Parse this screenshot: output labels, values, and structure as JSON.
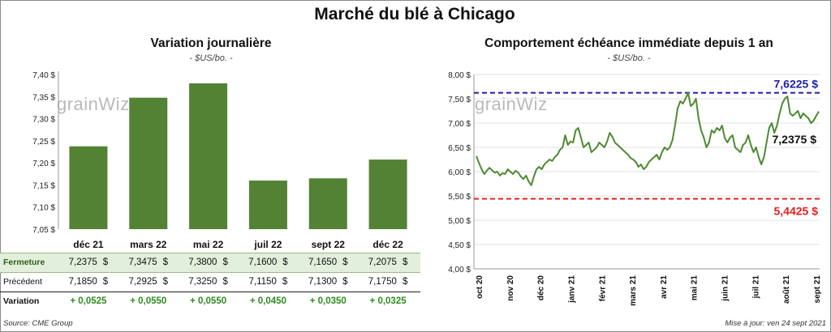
{
  "header": {
    "title": "Marché du blé à Chicago"
  },
  "left_chart": {
    "title": "Variation journalière",
    "subtitle": "- $US/bo. -",
    "logo": "grainWiz"
  },
  "right_chart": {
    "title": "Comportement  échéance immédiate depuis 1 an",
    "subtitle": "- $US/bo. -",
    "logo": "grainWiz",
    "annotations": {
      "high": "7,6225 $",
      "low": "5,4425 $",
      "last": "7,2375 $"
    }
  },
  "table": {
    "rows": [
      {
        "label": "Fermeture",
        "values": [
          "7,2375",
          "7,3475",
          "7,3800",
          "7,1600",
          "7,1650",
          "7,2075"
        ],
        "unit": "$"
      },
      {
        "label": "Précédent",
        "values": [
          "7,1850",
          "7,2925",
          "7,3250",
          "7,1150",
          "7,1300",
          "7,1750"
        ],
        "unit": "$"
      },
      {
        "label": "Variation",
        "values": [
          "+ 0,0525",
          "+ 0,0550",
          "+ 0,0550",
          "+ 0,0450",
          "+ 0,0350",
          "+ 0,0325"
        ],
        "unit": ""
      }
    ]
  },
  "footer": {
    "source": "Source: CME Group",
    "updated": "Mise à jour: ven 24 sept 2021"
  },
  "colors": {
    "bar": "#548235",
    "line": "#4e8a32",
    "high_line": "#1f1fa8",
    "low_line": "#e02020"
  },
  "chart_data": [
    {
      "type": "bar",
      "title": "Variation journalière",
      "categories": [
        "déc 21",
        "mars 22",
        "mai 22",
        "juil 22",
        "sept 22",
        "déc 22"
      ],
      "values": [
        7.2375,
        7.3475,
        7.38,
        7.16,
        7.165,
        7.2075
      ],
      "ylim": [
        7.05,
        7.4
      ],
      "yticks": [
        7.05,
        7.1,
        7.15,
        7.2,
        7.25,
        7.3,
        7.35,
        7.4
      ],
      "ytick_labels": [
        "7,05 $",
        "7,10 $",
        "7,15 $",
        "7,20 $",
        "7,25 $",
        "7,30 $",
        "7,35 $",
        "7,40 $"
      ],
      "grid": false
    },
    {
      "type": "line",
      "title": "Comportement  échéance immédiate depuis 1 an",
      "x_labels": [
        "oct 20",
        "nov 20",
        "déc 20",
        "janv 21",
        "févr 21",
        "mars 21",
        "avr 21",
        "mai 21",
        "juin 21",
        "juil 21",
        "août 21",
        "sept 21"
      ],
      "ylim": [
        4.0,
        8.0
      ],
      "yticks": [
        4.0,
        4.5,
        5.0,
        5.5,
        6.0,
        6.5,
        7.0,
        7.5,
        8.0
      ],
      "ytick_labels": [
        "4,00 $",
        "4,50 $",
        "5,00 $",
        "5,50 $",
        "6,00 $",
        "6,50 $",
        "7,00 $",
        "7,50 $",
        "8,00 $"
      ],
      "reference_lines": [
        {
          "value": 7.6225,
          "label": "7,6225 $"
        },
        {
          "value": 5.4425,
          "label": "5,4425 $"
        }
      ],
      "grid": true,
      "series": [
        {
          "values": [
            6.32,
            6.18,
            6.05,
            5.95,
            6.02,
            6.08,
            6.03,
            5.98,
            6.0,
            5.92,
            5.97,
            5.95,
            6.05,
            6.0,
            5.95,
            6.02,
            5.98,
            5.9,
            5.85,
            5.92,
            5.8,
            5.72,
            5.9,
            6.05,
            6.1,
            6.05,
            6.15,
            6.2,
            6.25,
            6.22,
            6.3,
            6.35,
            6.45,
            6.5,
            6.75,
            6.55,
            6.62,
            6.6,
            6.85,
            6.9,
            6.7,
            6.5,
            6.55,
            6.6,
            6.4,
            6.45,
            6.5,
            6.6,
            6.55,
            6.5,
            6.62,
            6.8,
            6.72,
            6.6,
            6.55,
            6.5,
            6.45,
            6.4,
            6.35,
            6.28,
            6.25,
            6.2,
            6.1,
            6.15,
            6.05,
            6.1,
            6.2,
            6.25,
            6.3,
            6.35,
            6.25,
            6.4,
            6.5,
            6.45,
            6.5,
            6.65,
            6.95,
            7.3,
            7.45,
            7.4,
            7.5,
            7.62,
            7.35,
            7.4,
            7.5,
            7.1,
            6.85,
            6.7,
            6.5,
            6.6,
            6.85,
            6.8,
            6.9,
            6.85,
            6.95,
            6.7,
            6.6,
            6.7,
            6.75,
            6.5,
            6.45,
            6.4,
            6.55,
            6.6,
            6.75,
            6.55,
            6.4,
            6.5,
            6.3,
            6.15,
            6.3,
            6.6,
            6.9,
            7.0,
            6.8,
            6.95,
            7.2,
            7.4,
            7.5,
            7.55,
            7.2,
            7.15,
            7.2,
            7.25,
            7.1,
            7.2,
            7.15,
            7.1,
            7.0,
            7.05,
            7.15,
            7.24
          ]
        }
      ]
    }
  ]
}
